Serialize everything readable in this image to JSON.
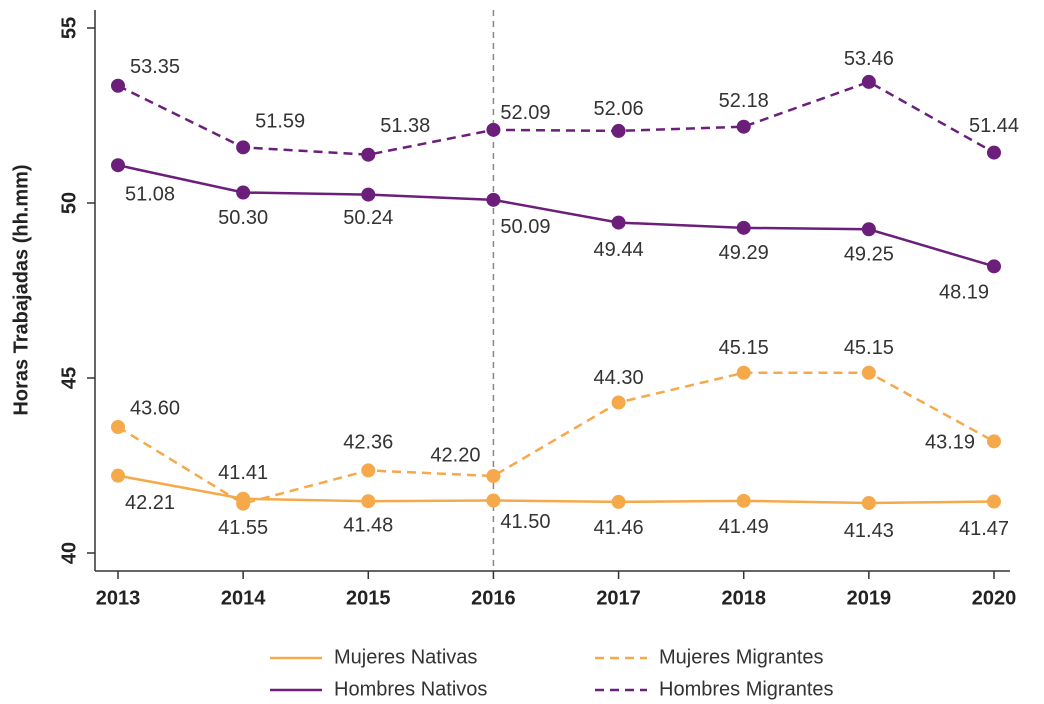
{
  "chart_data": {
    "type": "line",
    "y_label": "Horas Trabajadas (hh.mm)",
    "x": [
      2013,
      2014,
      2015,
      2016,
      2017,
      2018,
      2019,
      2020
    ],
    "xlim": [
      2013,
      2020
    ],
    "xticks": [
      2013,
      2014,
      2015,
      2016,
      2017,
      2018,
      2019,
      2020
    ],
    "ylim": [
      40,
      55
    ],
    "yticks": [
      40,
      45,
      50,
      55
    ],
    "vline": 2016,
    "series": [
      {
        "name": "Mujeres Nativas",
        "color": "#f5a94a",
        "line_style": "solid",
        "values": [
          42.21,
          41.55,
          41.48,
          41.5,
          41.46,
          41.49,
          41.43,
          41.47
        ],
        "value_labels": [
          "42.21",
          "41.55",
          "41.48",
          "41.50",
          "41.46",
          "41.49",
          "41.43",
          "41.47"
        ]
      },
      {
        "name": "Mujeres Migrantes",
        "color": "#f5a94a",
        "line_style": "dashed",
        "values": [
          43.6,
          41.41,
          42.36,
          42.2,
          44.3,
          45.15,
          45.15,
          43.19
        ],
        "value_labels": [
          "43.60",
          "41.41",
          "42.36",
          "42.20",
          "44.30",
          "45.15",
          "45.15",
          "43.19"
        ]
      },
      {
        "name": "Hombres Nativos",
        "color": "#6b1f7b",
        "line_style": "solid",
        "values": [
          51.08,
          50.3,
          50.24,
          50.09,
          49.44,
          49.29,
          49.25,
          48.19
        ],
        "value_labels": [
          "51.08",
          "50.30",
          "50.24",
          "50.09",
          "49.44",
          "49.29",
          "49.25",
          "48.19"
        ]
      },
      {
        "name": "Hombres Migrantes",
        "color": "#6b1f7b",
        "line_style": "dashed",
        "values": [
          53.35,
          51.59,
          51.38,
          52.09,
          52.06,
          52.18,
          53.46,
          51.44
        ],
        "value_labels": [
          "53.35",
          "51.59",
          "51.38",
          "52.09",
          "52.06",
          "52.18",
          "53.46",
          "51.44"
        ]
      }
    ]
  }
}
